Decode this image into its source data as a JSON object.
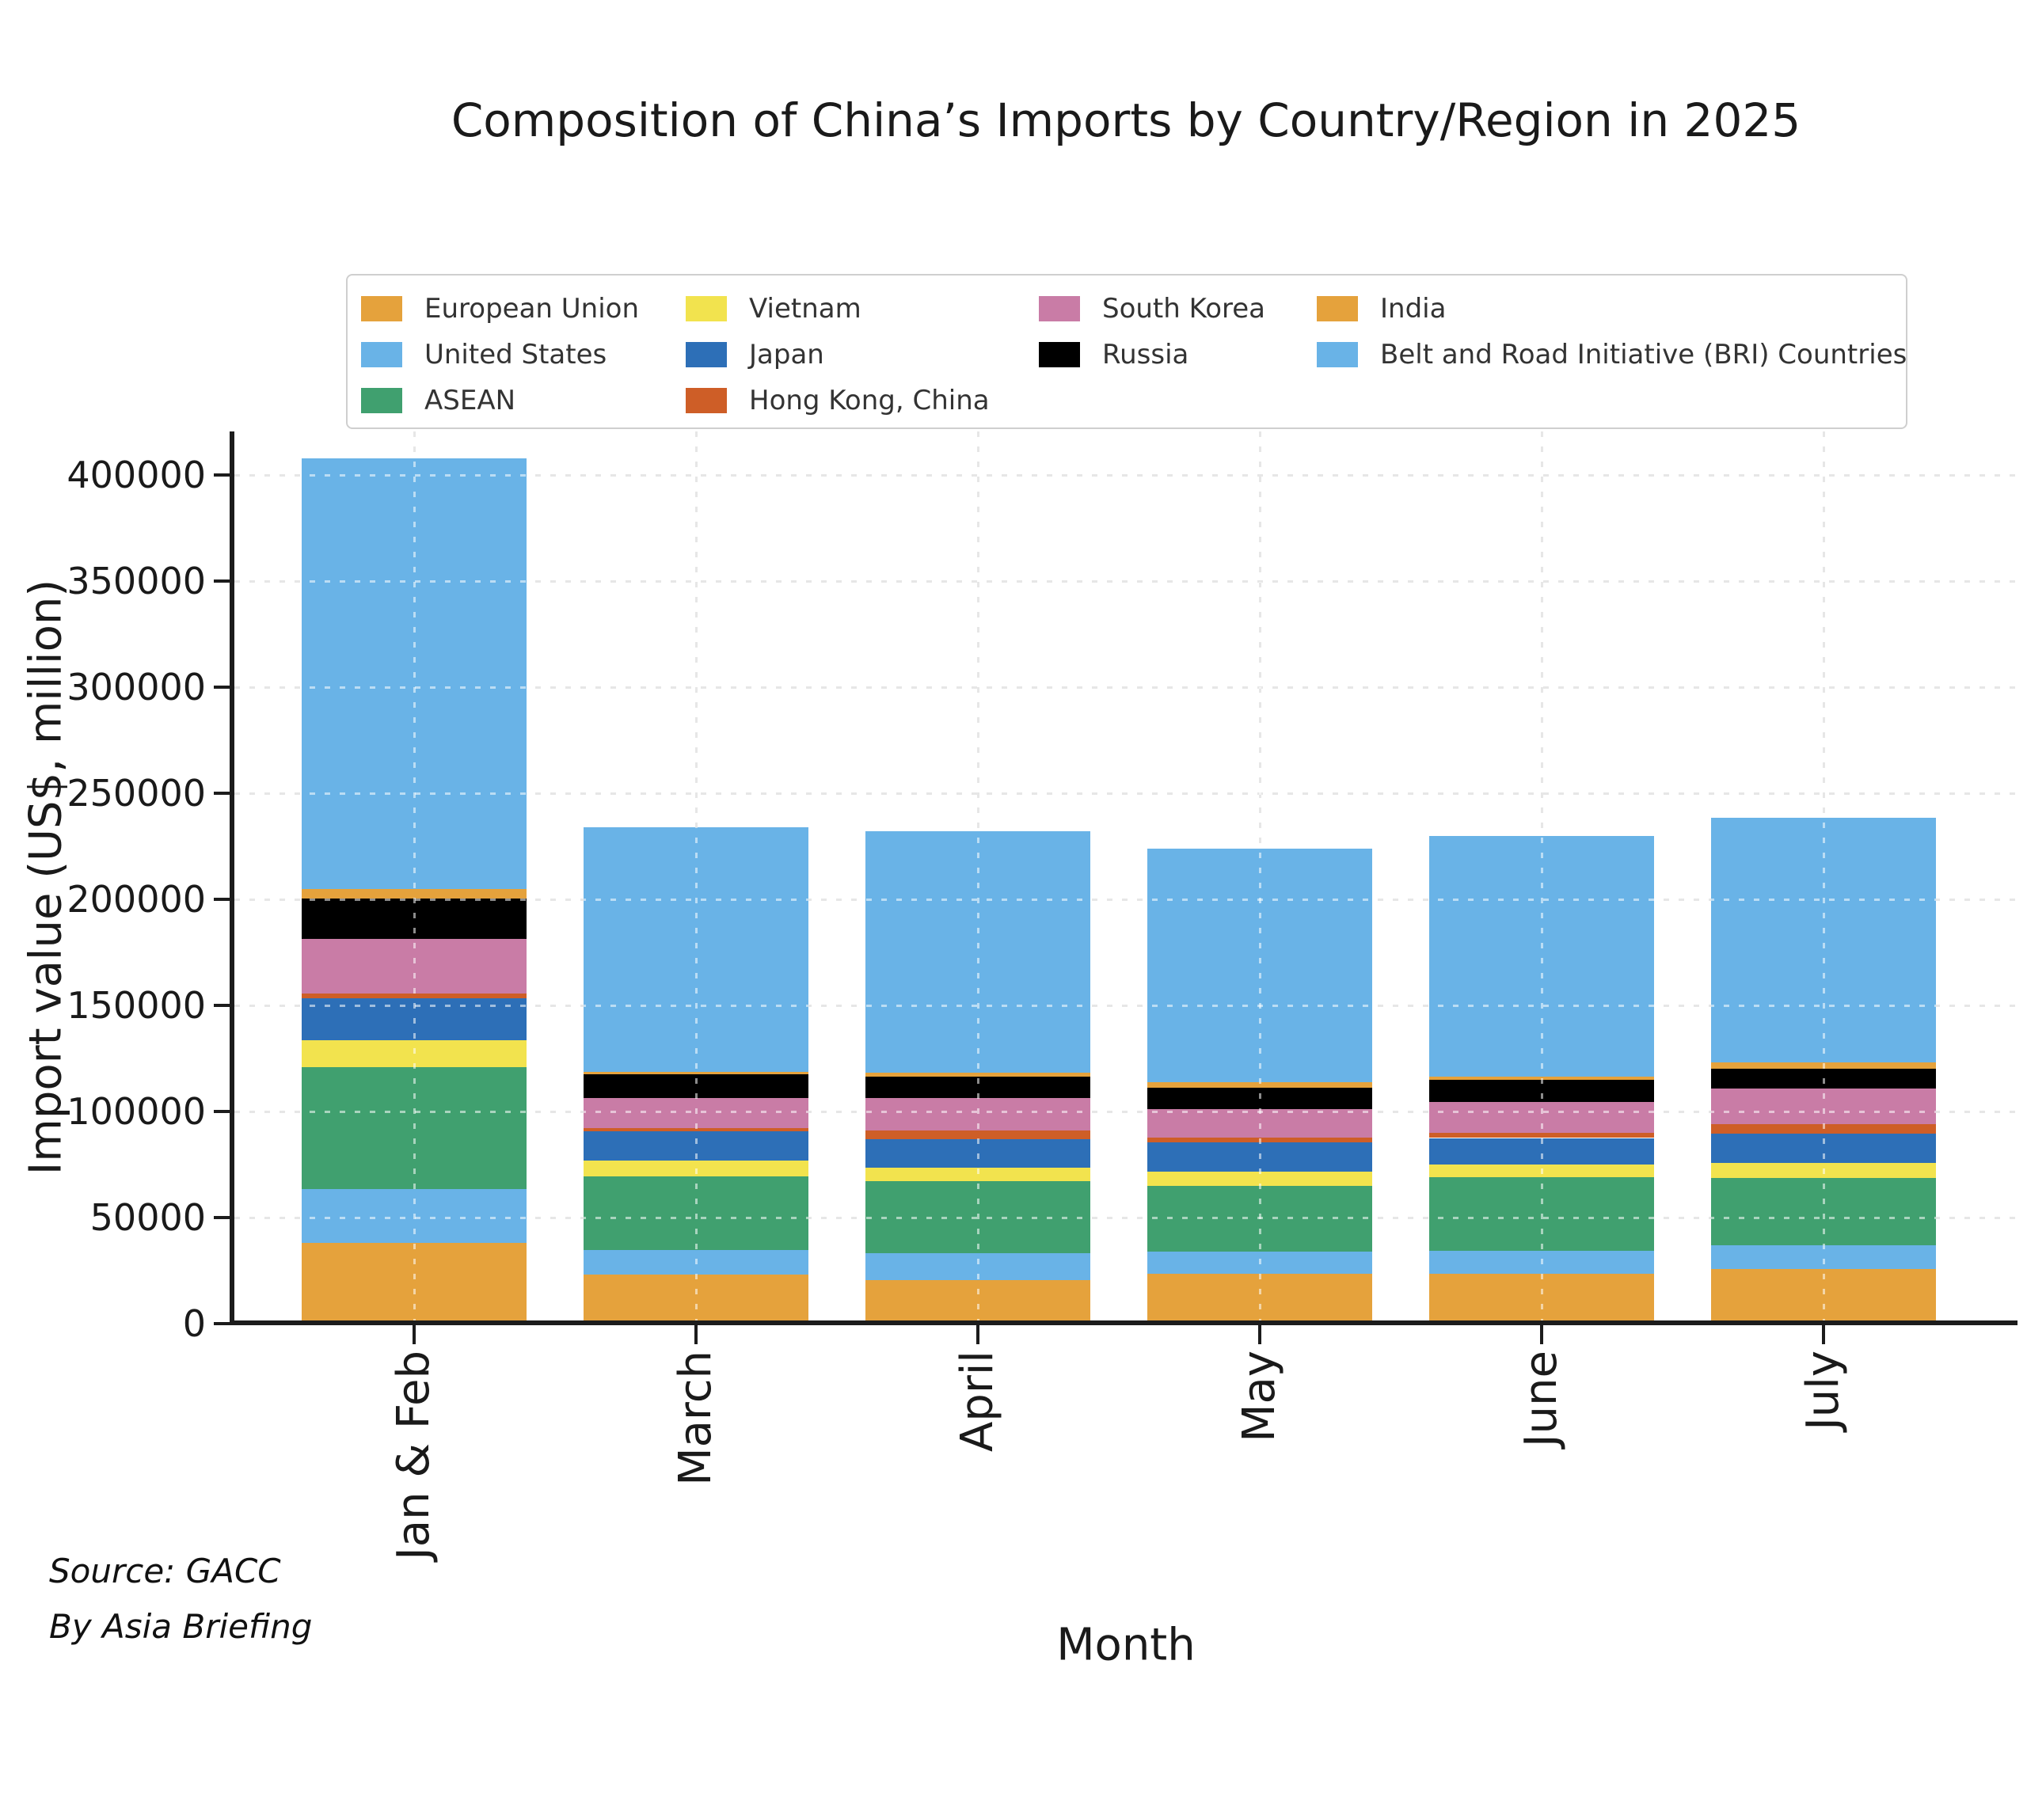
{
  "title": "Composition of China’s Imports by Country/Region in 2025",
  "axes": {
    "xlabel": "Month",
    "ylabel": "Import value (US$, million)"
  },
  "source": {
    "line1": "Source: GACC",
    "line2": "By Asia Briefing"
  },
  "colors": {
    "grid": "#c9c9c9",
    "spine": "#1c1c1c",
    "text": "#1a1a1a"
  },
  "chart_data": {
    "type": "bar",
    "stacked": true,
    "title": "Composition of China’s Imports by Country/Region in 2025",
    "xlabel": "Month",
    "ylabel": "Import value (US$, million)",
    "categories": [
      "Jan & Feb",
      "March",
      "April",
      "May",
      "June",
      "July"
    ],
    "series": [
      {
        "name": "European Union",
        "color": "#E5A23C",
        "values": [
          38000,
          23100,
          20600,
          23500,
          23500,
          25900
        ]
      },
      {
        "name": "United States",
        "color": "#69B3E7",
        "values": [
          25500,
          11600,
          12700,
          10500,
          11000,
          11200
        ]
      },
      {
        "name": "ASEAN",
        "color": "#40A06F",
        "values": [
          57500,
          34800,
          33800,
          31000,
          34500,
          31650
        ]
      },
      {
        "name": "Vietnam",
        "color": "#F2E34E",
        "values": [
          12500,
          7500,
          6300,
          6800,
          6000,
          6900
        ]
      },
      {
        "name": "Japan",
        "color": "#2D6FB7",
        "values": [
          20000,
          13500,
          13600,
          13500,
          12500,
          14000
        ]
      },
      {
        "name": "Hong Kong, China",
        "color": "#CE5E27",
        "values": [
          2000,
          1500,
          4000,
          2300,
          2400,
          4300
        ]
      },
      {
        "name": "South Korea",
        "color": "#C97CA6",
        "values": [
          26000,
          14500,
          15300,
          13700,
          14500,
          16700
        ]
      },
      {
        "name": "Russia",
        "color": "#000000",
        "values": [
          19000,
          10900,
          10100,
          10000,
          10500,
          9500
        ]
      },
      {
        "name": "India",
        "color": "#E5A23C",
        "values": [
          4300,
          1300,
          1750,
          2500,
          1500,
          3100
        ]
      },
      {
        "name": "Belt and Road Initiative (BRI) Countries",
        "color": "#69B3E7",
        "values": [
          203200,
          115300,
          113850,
          110200,
          113600,
          115200
        ]
      }
    ],
    "totals": [
      408000,
      234000,
      232000,
      224000,
      230000,
      238450
    ],
    "ylim": [
      0,
      420000
    ],
    "yticks": [
      0,
      50000,
      100000,
      150000,
      200000,
      250000,
      300000,
      350000,
      400000
    ],
    "grid": true,
    "legend": {
      "position": "top",
      "ncols": 4,
      "column_counts": [
        3,
        3,
        2,
        2
      ]
    }
  }
}
